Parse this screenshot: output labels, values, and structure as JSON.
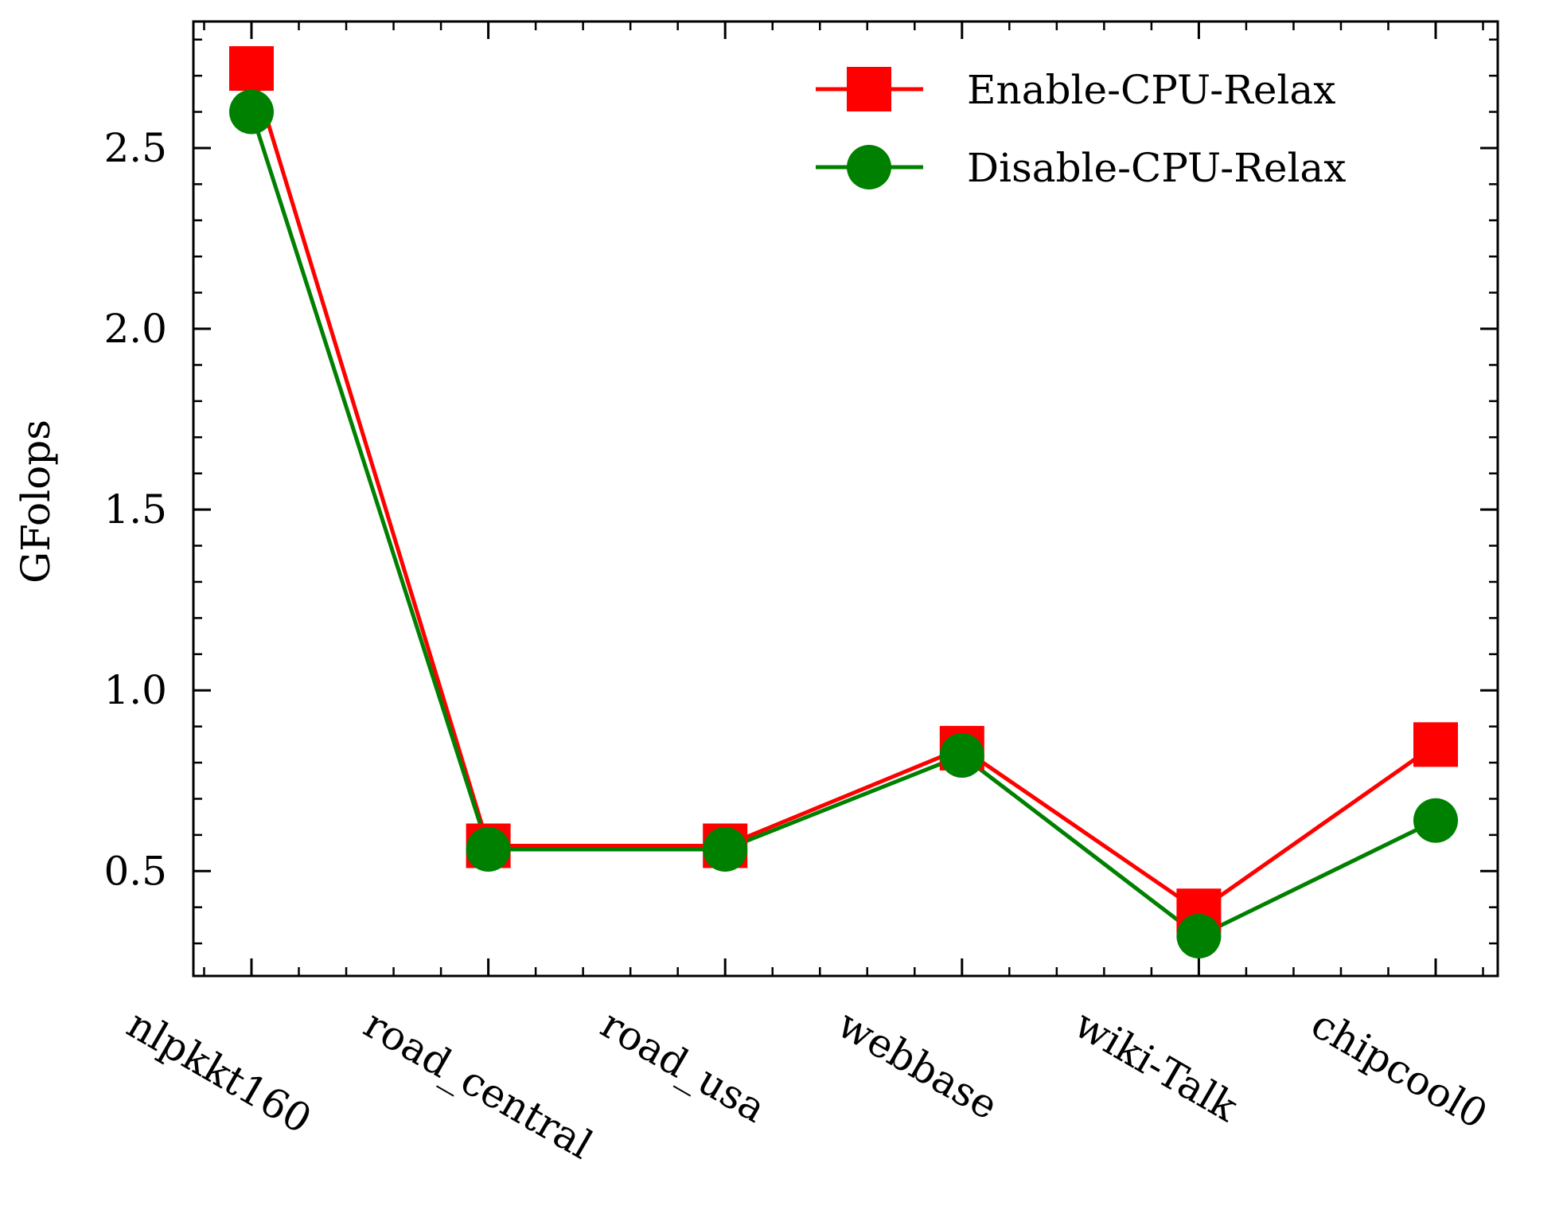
{
  "chart_data": {
    "type": "line",
    "title": "",
    "xlabel": "",
    "ylabel": "GFolops",
    "categories": [
      "nlpkkt160",
      "road_central",
      "road_usa",
      "webbase",
      "wiki-Talk",
      "chipcool0"
    ],
    "ylim": [
      0.21,
      2.85
    ],
    "yticks": [
      0.5,
      1.0,
      1.5,
      2.0,
      2.5
    ],
    "ytick_labels": [
      "0.5",
      "1.0",
      "1.5",
      "2.0",
      "2.5"
    ],
    "yminor_step": 0.1,
    "grid": false,
    "legend_position": "top-right",
    "series": [
      {
        "name": "Enable-CPU-Relax",
        "color": "#ff0000",
        "marker": "square",
        "values": [
          2.72,
          0.57,
          0.57,
          0.84,
          0.39,
          0.85
        ]
      },
      {
        "name": "Disable-CPU-Relax",
        "color": "#008000",
        "marker": "circle",
        "values": [
          2.6,
          0.56,
          0.56,
          0.82,
          0.32,
          0.64
        ]
      }
    ]
  }
}
